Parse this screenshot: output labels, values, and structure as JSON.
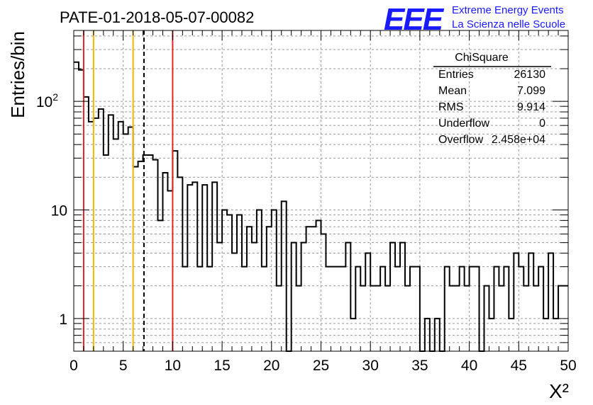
{
  "title": "PATE-01-2018-05-07-00082",
  "logo": {
    "letters": "EEE",
    "line1": "Extreme Energy Events",
    "line2": "La Scienza nelle Scuole",
    "color": "#1a1aff"
  },
  "stats": {
    "title": "ChiSquare",
    "rows": [
      {
        "label": "Entries",
        "value": "26130"
      },
      {
        "label": "Mean",
        "value": "7.099"
      },
      {
        "label": "RMS",
        "value": "9.914"
      },
      {
        "label": "Underflow",
        "value": "0"
      },
      {
        "label": "Overflow",
        "value": "2.458e+04"
      }
    ]
  },
  "chart_data": {
    "type": "histogram",
    "title": "PATE-01-2018-05-07-00082",
    "xlabel": "X²",
    "ylabel": "Entries/bin",
    "xlim": [
      0,
      50
    ],
    "ylim": [
      0.5,
      450
    ],
    "yscale": "log",
    "grid": true,
    "bin_width": 0.5,
    "x_ticks": [
      "0",
      "5",
      "10",
      "15",
      "20",
      "25",
      "30",
      "35",
      "40",
      "45",
      "50"
    ],
    "y_ticks": [
      {
        "value": 1,
        "label": "1"
      },
      {
        "value": 10,
        "label": "10"
      },
      {
        "value": 100,
        "label": "10^2"
      }
    ],
    "counts": [
      230,
      195,
      110,
      65,
      70,
      85,
      32,
      75,
      45,
      65,
      50,
      58,
      25,
      28,
      32,
      32,
      29,
      8,
      22,
      15,
      35,
      20,
      3,
      17,
      18,
      3,
      17,
      3,
      18,
      5,
      10,
      9,
      4,
      9,
      3,
      7,
      5,
      10,
      3,
      7,
      10,
      2,
      12,
      0,
      5,
      2,
      5,
      7,
      7,
      8,
      6,
      3,
      3,
      3,
      3,
      5,
      1,
      3,
      2,
      4,
      2,
      2,
      3,
      2,
      5,
      3,
      5,
      2,
      3,
      3,
      0,
      1,
      0,
      1,
      0,
      3,
      2,
      2,
      3,
      2,
      3,
      3,
      0,
      2,
      1,
      3,
      2,
      3,
      1,
      4,
      3,
      2,
      4,
      2,
      3,
      1,
      4,
      1,
      2,
      2
    ],
    "vertical_lines": [
      {
        "x": 1,
        "color": "#e0262a",
        "style": "solid"
      },
      {
        "x": 2,
        "color": "#f0b800",
        "style": "solid"
      },
      {
        "x": 6,
        "color": "#f0b800",
        "style": "solid"
      },
      {
        "x": 7.099,
        "color": "#000000",
        "style": "dashed"
      },
      {
        "x": 10,
        "color": "#e0262a",
        "style": "solid"
      }
    ]
  }
}
